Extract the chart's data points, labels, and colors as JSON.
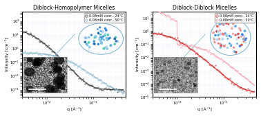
{
  "left_title": "Diblock-Homopolymer Micelles",
  "right_title": "Diblock-Diblock Micelles",
  "xlabel": "q [Å⁻¹]",
  "ylabel": "Intensity [cm⁻¹]",
  "left_legend": [
    "0.08mM conc., 24°C",
    "0.08mM conc., 50°C"
  ],
  "right_legend": [
    "0.08mM conc., 24°C",
    "0.08mM conc., 50°C"
  ],
  "left_colors_data": [
    "#2c2c2c",
    "#8ab4c8"
  ],
  "left_colors_fit": [
    "#5a5a5a",
    "#a8c8d8"
  ],
  "right_colors_data": [
    "#cc2222",
    "#f0a0b0"
  ],
  "right_colors_fit": [
    "#dd4444",
    "#f8c0c8"
  ],
  "q_min": 0.003,
  "q_max": 0.5,
  "left_ylim": [
    0.0003,
    500.0
  ],
  "right_ylim": [
    1e-05,
    30.0
  ],
  "title_fontsize": 5.5,
  "axis_fontsize": 4.5,
  "tick_fontsize": 3.8,
  "legend_fontsize": 3.5
}
